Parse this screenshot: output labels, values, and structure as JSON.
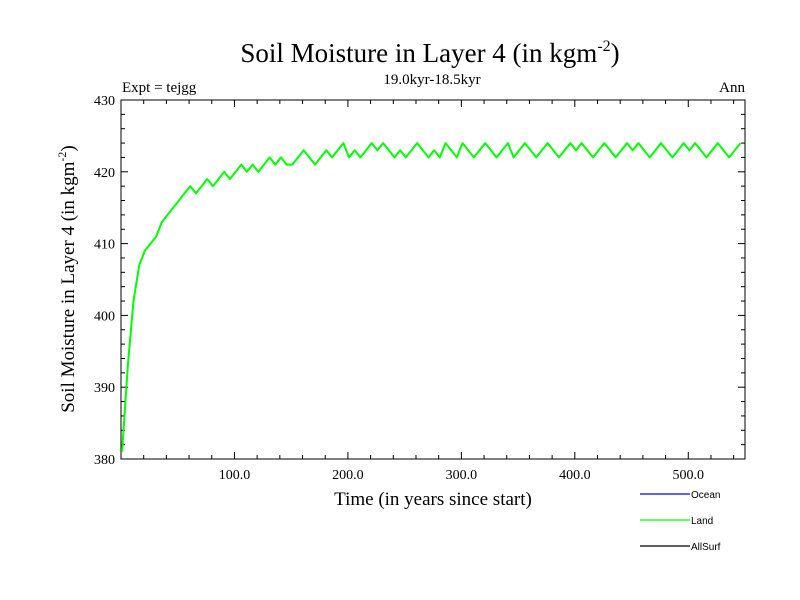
{
  "chart_data": {
    "type": "line",
    "title_main": "Soil Moisture in Layer 4 (in kgm",
    "title_sup": "-2",
    "title_close": ")",
    "subtitle_left": "Expt = tejgg",
    "subtitle_center": "19.0kyr-18.5kyr",
    "subtitle_right": "Ann",
    "xlabel": "Time (in years since start)",
    "ylabel_main": "Soil Moisture in Layer 4 (in kgm",
    "ylabel_sup": "-2",
    "ylabel_close": ")",
    "xlim": [
      0,
      550
    ],
    "ylim": [
      380,
      430
    ],
    "x_ticks": [
      100,
      200,
      300,
      400,
      500
    ],
    "x_tick_labels": [
      "100.0",
      "200.0",
      "300.0",
      "400.0",
      "500.0"
    ],
    "y_ticks": [
      380,
      390,
      400,
      410,
      420,
      430
    ],
    "y_tick_labels": [
      "380",
      "390",
      "400",
      "410",
      "420",
      "430"
    ],
    "legend": [
      {
        "name": "Ocean",
        "color": "#0000ff"
      },
      {
        "name": "Land",
        "color": "#00ff00"
      },
      {
        "name": "AllSurf",
        "color": "#000000"
      }
    ],
    "series": [
      {
        "name": "Land",
        "color": "#00ff00",
        "x_start": 1,
        "x_step": 5,
        "values": [
          381,
          393,
          402,
          407,
          409,
          410,
          411,
          413,
          414,
          415,
          416,
          417,
          418,
          417,
          418,
          419,
          418,
          419,
          420,
          419,
          420,
          421,
          420,
          421,
          420,
          421,
          422,
          421,
          422,
          421,
          421,
          422,
          423,
          422,
          421,
          422,
          423,
          422,
          423,
          424,
          422,
          423,
          422,
          423,
          424,
          423,
          424,
          423,
          422,
          423,
          422,
          423,
          424,
          423,
          422,
          423,
          422,
          424,
          423,
          422,
          424,
          423,
          422,
          423,
          424,
          423,
          422,
          423,
          424,
          422,
          423,
          424,
          423,
          422,
          423,
          424,
          423,
          422,
          423,
          424,
          423,
          424,
          423,
          422,
          423,
          424,
          423,
          422,
          423,
          424,
          423,
          424,
          423,
          422,
          423,
          424,
          423,
          422,
          423,
          424,
          423,
          424,
          423,
          422,
          423,
          424,
          423,
          422,
          423,
          424
        ]
      }
    ]
  }
}
